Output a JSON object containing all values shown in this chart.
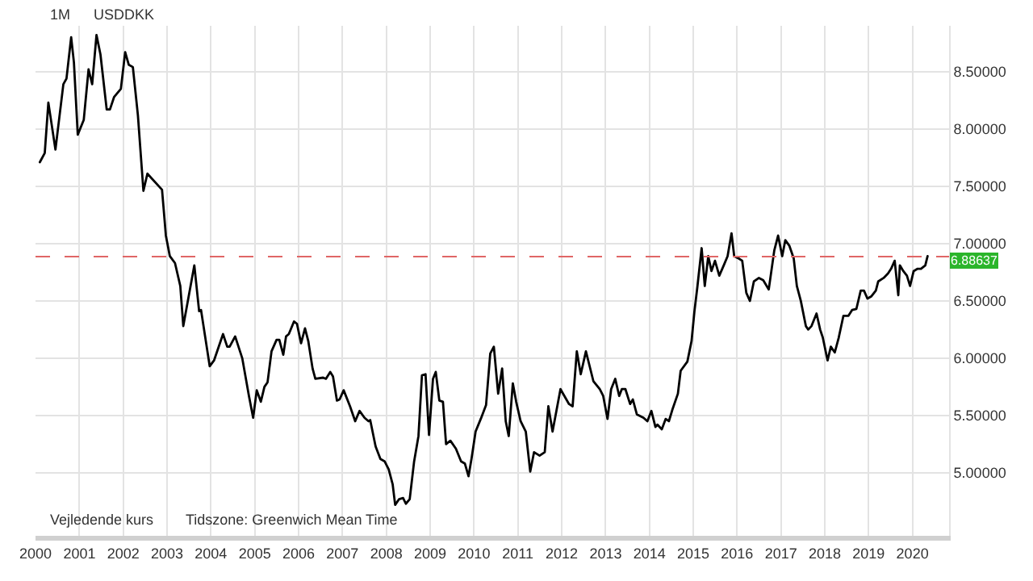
{
  "chart_data": {
    "type": "line",
    "x": [
      "2000-02-06",
      "2000-03-18",
      "2000-04-17",
      "2000-06-15",
      "2000-08-20",
      "2000-09-15",
      "2000-10-24",
      "2000-11-16",
      "2000-12-18",
      "2001-02-06",
      "2001-03-18",
      "2001-04-17",
      "2001-05-23",
      "2001-06-25",
      "2001-08-16",
      "2001-09-12",
      "2001-10-17",
      "2001-12-12",
      "2002-01-17",
      "2002-02-16",
      "2002-03-22",
      "2002-05-03",
      "2002-06-18",
      "2002-07-21",
      "2002-11-20",
      "2002-12-22",
      "2003-01-24",
      "2003-03-08",
      "2003-04-21",
      "2003-05-16",
      "2003-08-16",
      "2003-09-25",
      "2003-10-11",
      "2003-12-22",
      "2004-01-27",
      "2004-04-11",
      "2004-05-16",
      "2004-06-05",
      "2004-07-21",
      "2004-09-18",
      "2004-11-13",
      "2004-12-18",
      "2005-01-17",
      "2005-02-20",
      "2005-03-22",
      "2005-04-17",
      "2005-05-20",
      "2005-07-01",
      "2005-07-24",
      "2005-08-26",
      "2005-09-18",
      "2005-10-11",
      "2005-11-23",
      "2005-12-18",
      "2006-01-21",
      "2006-02-23",
      "2006-03-22",
      "2006-04-27",
      "2006-05-20",
      "2006-07-24",
      "2006-08-16",
      "2006-09-21",
      "2006-10-14",
      "2006-11-16",
      "2006-12-08",
      "2007-01-11",
      "2007-03-05",
      "2007-04-17",
      "2007-05-23",
      "2007-07-04",
      "2007-08-06",
      "2007-08-20",
      "2007-10-04",
      "2007-11-13",
      "2007-12-18",
      "2008-01-21",
      "2008-02-23",
      "2008-03-15",
      "2008-04-17",
      "2008-05-20",
      "2008-06-12",
      "2008-07-14",
      "2008-08-20",
      "2008-09-25",
      "2008-10-24",
      "2008-11-23",
      "2008-12-22",
      "2009-01-24",
      "2009-02-16",
      "2009-03-18",
      "2009-04-17",
      "2009-05-13",
      "2009-06-18",
      "2009-08-03",
      "2009-09-15",
      "2009-10-17",
      "2009-11-16",
      "2009-12-12",
      "2010-01-14",
      "2010-02-26",
      "2010-04-11",
      "2010-05-16",
      "2010-06-15",
      "2010-07-21",
      "2010-08-23",
      "2010-09-22",
      "2010-10-17",
      "2010-11-20",
      "2010-12-18",
      "2011-01-24",
      "2011-03-08",
      "2011-04-14",
      "2011-05-16",
      "2011-07-01",
      "2011-08-13",
      "2011-09-12",
      "2011-10-17",
      "2011-12-22",
      "2012-03-02",
      "2012-04-01",
      "2012-05-06",
      "2012-06-08",
      "2012-07-21",
      "2012-09-21",
      "2012-11-13",
      "2012-12-12",
      "2013-01-17",
      "2013-02-16",
      "2013-03-22",
      "2013-04-24",
      "2013-05-16",
      "2013-06-15",
      "2013-07-24",
      "2013-08-16",
      "2013-09-18",
      "2013-11-13",
      "2013-12-15",
      "2014-01-17",
      "2014-02-20",
      "2014-03-09",
      "2014-04-14",
      "2014-05-16",
      "2014-06-12",
      "2014-07-11",
      "2014-08-26",
      "2014-09-18",
      "2014-11-13",
      "2014-12-18",
      "2015-01-11",
      "2015-02-03",
      "2015-03-12",
      "2015-04-07",
      "2015-05-06",
      "2015-06-02",
      "2015-07-01",
      "2015-08-06",
      "2015-09-12",
      "2015-10-14",
      "2015-11-16",
      "2015-12-08",
      "2016-01-14",
      "2016-02-13",
      "2016-03-18",
      "2016-04-17",
      "2016-05-20",
      "2016-07-01",
      "2016-08-06",
      "2016-09-21",
      "2016-11-06",
      "2016-12-08",
      "2017-01-11",
      "2017-02-06",
      "2017-03-12",
      "2017-04-17",
      "2017-05-13",
      "2017-06-15",
      "2017-07-27",
      "2017-08-16",
      "2017-09-12",
      "2017-10-24",
      "2017-11-23",
      "2017-12-15",
      "2018-01-24",
      "2018-02-20",
      "2018-03-25",
      "2018-04-27",
      "2018-06-05",
      "2018-07-17",
      "2018-08-16",
      "2018-09-21",
      "2018-10-27",
      "2018-11-23",
      "2018-12-22",
      "2019-01-24",
      "2019-03-02",
      "2019-03-22",
      "2019-05-06",
      "2019-06-12",
      "2019-07-07",
      "2019-08-06",
      "2019-09-05",
      "2019-09-18",
      "2019-10-17",
      "2019-11-16",
      "2019-12-12",
      "2020-01-11",
      "2020-02-13",
      "2020-03-12",
      "2020-04-17",
      "2020-05-06"
    ],
    "series": [
      {
        "color": "#000000",
        "values": [
          7.71,
          7.79,
          8.23,
          7.82,
          8.39,
          8.44,
          8.8,
          8.58,
          7.95,
          8.08,
          8.52,
          8.39,
          8.82,
          8.65,
          8.17,
          8.17,
          8.28,
          8.35,
          8.67,
          8.56,
          8.54,
          8.12,
          7.46,
          7.61,
          7.47,
          7.07,
          6.89,
          6.83,
          6.63,
          6.28,
          6.81,
          6.41,
          6.42,
          5.93,
          5.98,
          6.21,
          6.1,
          6.1,
          6.19,
          6.0,
          5.67,
          5.48,
          5.72,
          5.62,
          5.75,
          5.79,
          6.06,
          6.16,
          6.16,
          6.03,
          6.19,
          6.21,
          6.32,
          6.3,
          6.13,
          6.26,
          6.15,
          5.91,
          5.82,
          5.83,
          5.82,
          5.88,
          5.84,
          5.63,
          5.64,
          5.72,
          5.58,
          5.45,
          5.54,
          5.48,
          5.45,
          5.46,
          5.23,
          5.12,
          5.1,
          5.03,
          4.9,
          4.72,
          4.77,
          4.78,
          4.73,
          4.77,
          5.1,
          5.32,
          5.85,
          5.86,
          5.33,
          5.82,
          5.88,
          5.63,
          5.62,
          5.25,
          5.28,
          5.21,
          5.1,
          5.08,
          4.97,
          5.13,
          5.36,
          5.47,
          5.59,
          6.04,
          6.1,
          5.69,
          5.91,
          5.45,
          5.32,
          5.78,
          5.62,
          5.45,
          5.36,
          5.01,
          5.18,
          5.15,
          5.18,
          5.58,
          5.36,
          5.73,
          5.6,
          5.58,
          6.06,
          5.86,
          6.06,
          5.8,
          5.73,
          5.67,
          5.47,
          5.73,
          5.82,
          5.67,
          5.73,
          5.73,
          5.6,
          5.64,
          5.51,
          5.48,
          5.45,
          5.54,
          5.4,
          5.42,
          5.38,
          5.47,
          5.45,
          5.55,
          5.69,
          5.89,
          5.97,
          6.15,
          6.41,
          6.61,
          6.96,
          6.63,
          6.89,
          6.76,
          6.85,
          6.72,
          6.81,
          6.89,
          7.09,
          6.89,
          6.87,
          6.85,
          6.57,
          6.5,
          6.67,
          6.7,
          6.68,
          6.6,
          6.94,
          7.07,
          6.89,
          7.03,
          6.98,
          6.87,
          6.63,
          6.5,
          6.28,
          6.25,
          6.28,
          6.39,
          6.25,
          6.18,
          5.98,
          6.1,
          6.05,
          6.18,
          6.37,
          6.37,
          6.42,
          6.43,
          6.59,
          6.59,
          6.52,
          6.54,
          6.59,
          6.67,
          6.7,
          6.74,
          6.78,
          6.85,
          6.55,
          6.81,
          6.76,
          6.72,
          6.63,
          6.76,
          6.78,
          6.78,
          6.81,
          6.89
        ]
      }
    ],
    "xlim": [
      "2000-01-01",
      "2020-11-01"
    ],
    "xticks": [
      "2000",
      "2001",
      "2002",
      "2003",
      "2004",
      "2005",
      "2006",
      "2007",
      "2008",
      "2009",
      "2010",
      "2011",
      "2012",
      "2013",
      "2014",
      "2015",
      "2016",
      "2017",
      "2018",
      "2019",
      "2020"
    ],
    "ylim": [
      4.45,
      8.9
    ],
    "yticks": [
      {
        "value": 5,
        "label": "5.00000"
      },
      {
        "value": 5.5,
        "label": "5.50000"
      },
      {
        "value": 6,
        "label": "6.00000"
      },
      {
        "value": 6.5,
        "label": "6.50000"
      },
      {
        "value": 7,
        "label": "7.00000"
      },
      {
        "value": 7.5,
        "label": "7.50000"
      },
      {
        "value": 8,
        "label": "8.00000"
      },
      {
        "value": 8.5,
        "label": "8.50000"
      }
    ],
    "ref_lines": [
      {
        "axis": "y",
        "value": 6.88637,
        "label": "6.88637",
        "color": "#e06666",
        "line_style": "dashed"
      }
    ],
    "annotations": [
      "1M",
      "USDDKK",
      "Vejledende kurs",
      "Tidszone: Greenwich Mean Time"
    ],
    "grid": true,
    "marker": "none",
    "line_style": "solid"
  }
}
